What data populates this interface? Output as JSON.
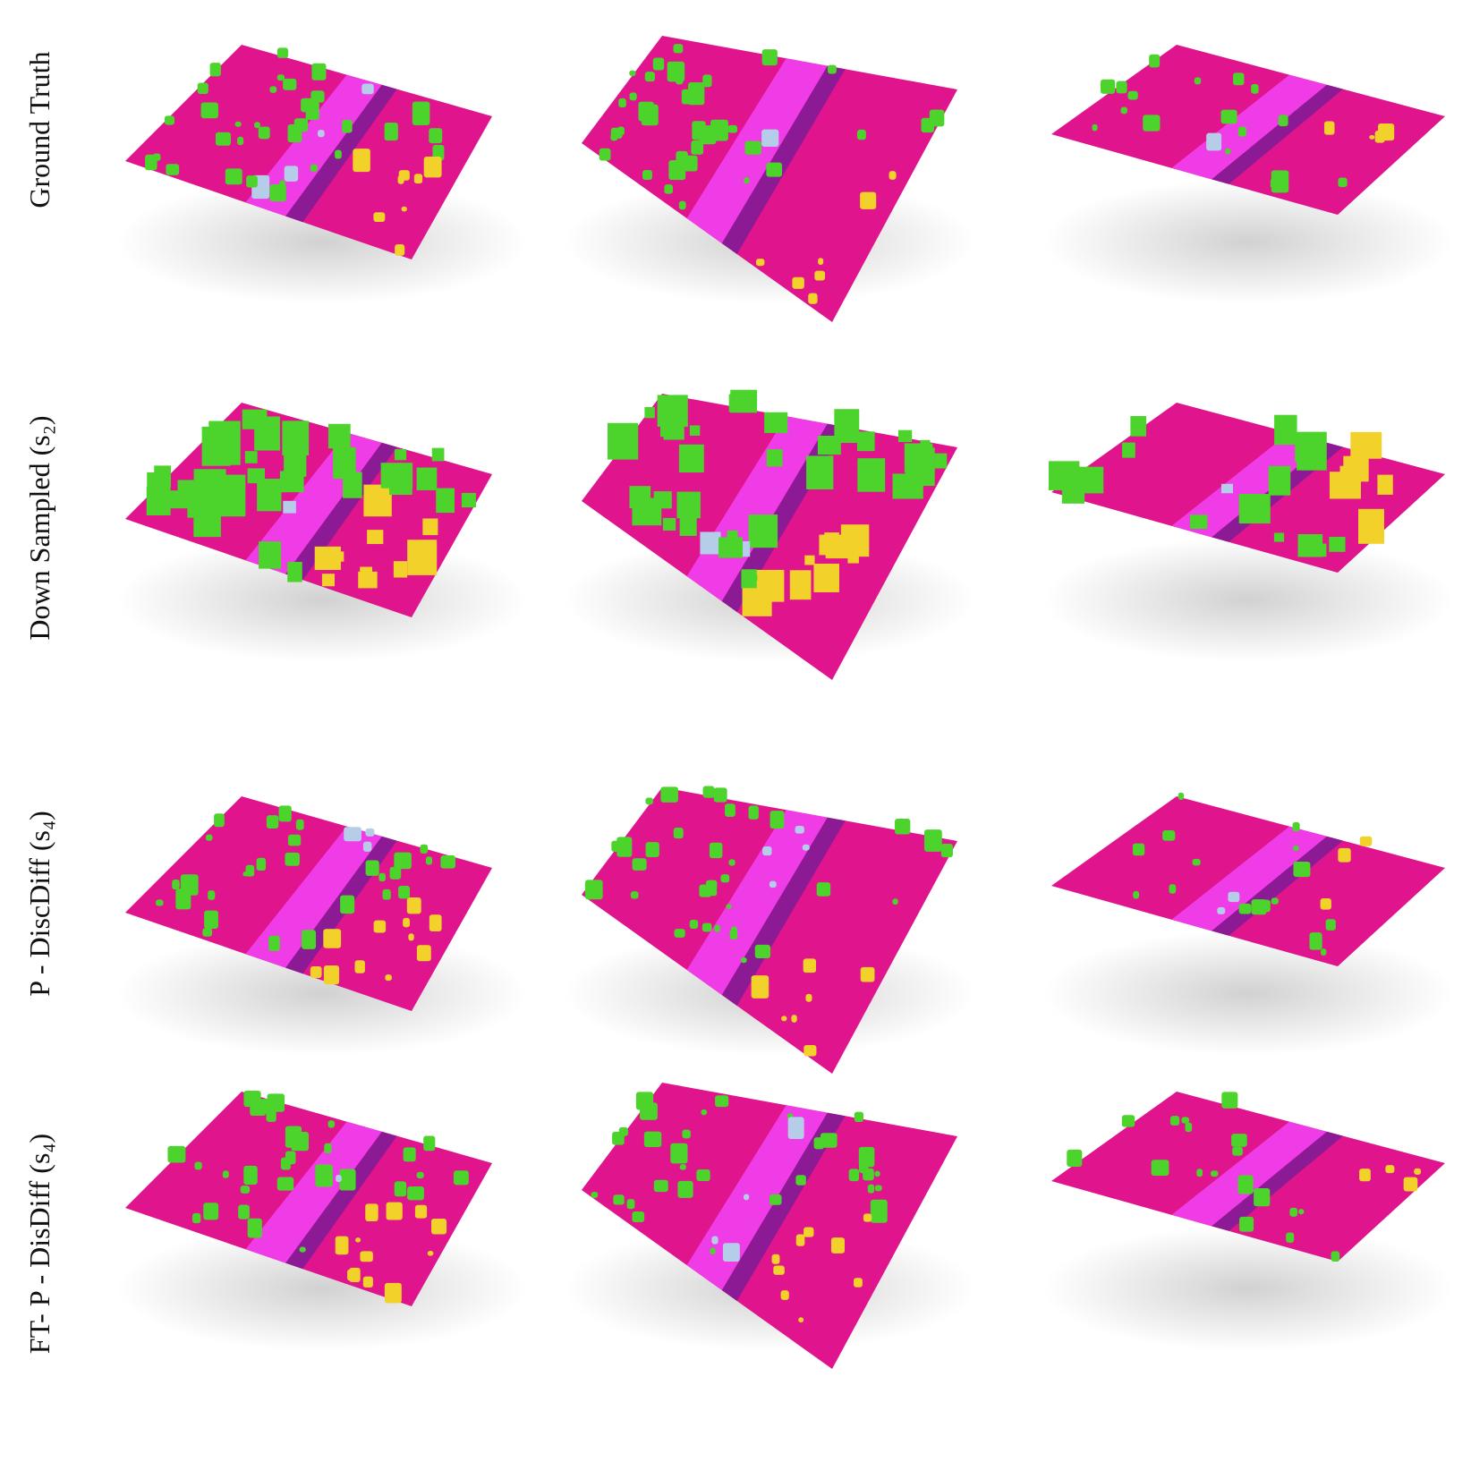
{
  "rows": [
    {
      "label": "Ground Truth"
    },
    {
      "label": "Down Sampled (s₂)"
    },
    {
      "label": "P - DiscDiff (s₄)"
    },
    {
      "label": "FT- P - DisDiff (s₄)"
    }
  ]
}
